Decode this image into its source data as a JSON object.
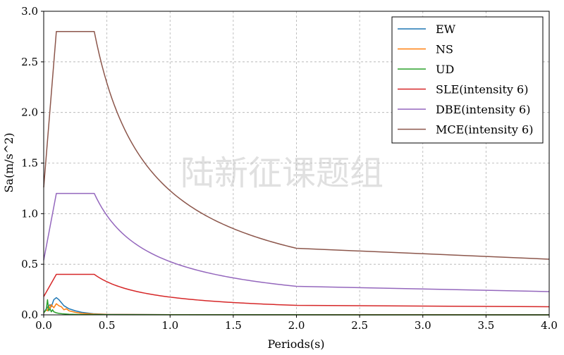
{
  "chart_data": {
    "type": "line",
    "title": "",
    "xlabel": "Periods(s)",
    "ylabel": "Sa(m/s^2)",
    "xlim": [
      0.0,
      4.0
    ],
    "ylim": [
      0.0,
      3.0
    ],
    "xticks": [
      "0.0",
      "0.5",
      "1.0",
      "1.5",
      "2.0",
      "2.5",
      "3.0",
      "3.5",
      "4.0"
    ],
    "yticks": [
      "0.0",
      "0.5",
      "1.0",
      "1.5",
      "2.0",
      "2.5",
      "3.0"
    ],
    "grid": true,
    "legend_position": "top-right",
    "watermark": "陆新征课题组",
    "series": [
      {
        "name": "EW",
        "color": "#1f77b4",
        "x": [
          0.0,
          0.02,
          0.04,
          0.05,
          0.06,
          0.08,
          0.1,
          0.12,
          0.14,
          0.16,
          0.2,
          0.25,
          0.3,
          0.4,
          0.5,
          1.0,
          2.0,
          3.0,
          4.0
        ],
        "y": [
          0.02,
          0.06,
          0.09,
          0.1,
          0.08,
          0.15,
          0.17,
          0.15,
          0.12,
          0.09,
          0.06,
          0.04,
          0.025,
          0.01,
          0.005,
          0.002,
          0.001,
          0.0005,
          0.0003
        ]
      },
      {
        "name": "NS",
        "color": "#ff7f0e",
        "x": [
          0.0,
          0.02,
          0.03,
          0.04,
          0.05,
          0.06,
          0.08,
          0.1,
          0.12,
          0.14,
          0.16,
          0.18,
          0.2,
          0.25,
          0.3,
          0.4,
          0.5,
          1.0,
          2.0,
          3.0,
          4.0
        ],
        "y": [
          0.02,
          0.05,
          0.04,
          0.09,
          0.06,
          0.1,
          0.07,
          0.11,
          0.09,
          0.08,
          0.05,
          0.06,
          0.04,
          0.025,
          0.015,
          0.008,
          0.004,
          0.002,
          0.001,
          0.0005,
          0.0003
        ]
      },
      {
        "name": "UD",
        "color": "#2ca02c",
        "x": [
          0.0,
          0.02,
          0.03,
          0.04,
          0.05,
          0.06,
          0.07,
          0.08,
          0.1,
          0.12,
          0.15,
          0.2,
          0.3,
          0.5,
          1.0,
          2.0,
          4.0
        ],
        "y": [
          0.02,
          0.05,
          0.15,
          0.04,
          0.06,
          0.03,
          0.05,
          0.03,
          0.02,
          0.015,
          0.01,
          0.006,
          0.003,
          0.002,
          0.001,
          0.0005,
          0.0002
        ]
      },
      {
        "name": "SLE(intensity 6)",
        "color": "#d62728",
        "tg": 0.4,
        "amax": 0.4,
        "a0": 0.18,
        "t1": 0.1,
        "end_at_tail": 0.08
      },
      {
        "name": "DBE(intensity 6)",
        "color": "#9467bd",
        "tg": 0.4,
        "amax": 1.2,
        "a0": 0.54,
        "t1": 0.1,
        "end_at_tail": 0.23
      },
      {
        "name": "MCE(intensity 6)",
        "color": "#8c564b",
        "tg": 0.4,
        "amax": 2.8,
        "a0": 1.26,
        "t1": 0.1,
        "end_at_tail": 0.55
      }
    ]
  }
}
